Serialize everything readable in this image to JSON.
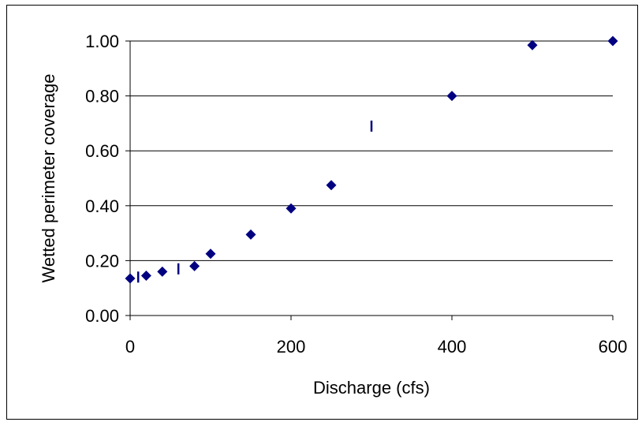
{
  "chart_data": {
    "type": "scatter",
    "title": "",
    "xlabel": "Discharge (cfs)",
    "ylabel": "Wetted perimeter coverage",
    "xlim": [
      0,
      600
    ],
    "ylim": [
      0,
      1.0
    ],
    "xticks": [
      "0",
      "200",
      "400",
      "600"
    ],
    "xtick_values": [
      0,
      200,
      400,
      600
    ],
    "yticks": [
      "0.00",
      "0.20",
      "0.40",
      "0.60",
      "0.80",
      "1.00"
    ],
    "ytick_values": [
      0,
      0.2,
      0.4,
      0.6,
      0.8,
      1.0
    ],
    "grid": "horizontal",
    "legend": "none",
    "series": [
      {
        "marker": "diamond",
        "color": "#000080",
        "x": [
          0,
          20,
          40,
          80,
          100,
          150,
          200,
          250,
          400,
          500,
          600
        ],
        "y": [
          0.135,
          0.145,
          0.16,
          0.18,
          0.225,
          0.295,
          0.39,
          0.475,
          0.8,
          0.985,
          1.0
        ]
      },
      {
        "marker": "vertical-bar",
        "color": "#000080",
        "x": [
          10,
          60,
          300
        ],
        "y": [
          0.14,
          0.17,
          0.69
        ]
      }
    ]
  }
}
